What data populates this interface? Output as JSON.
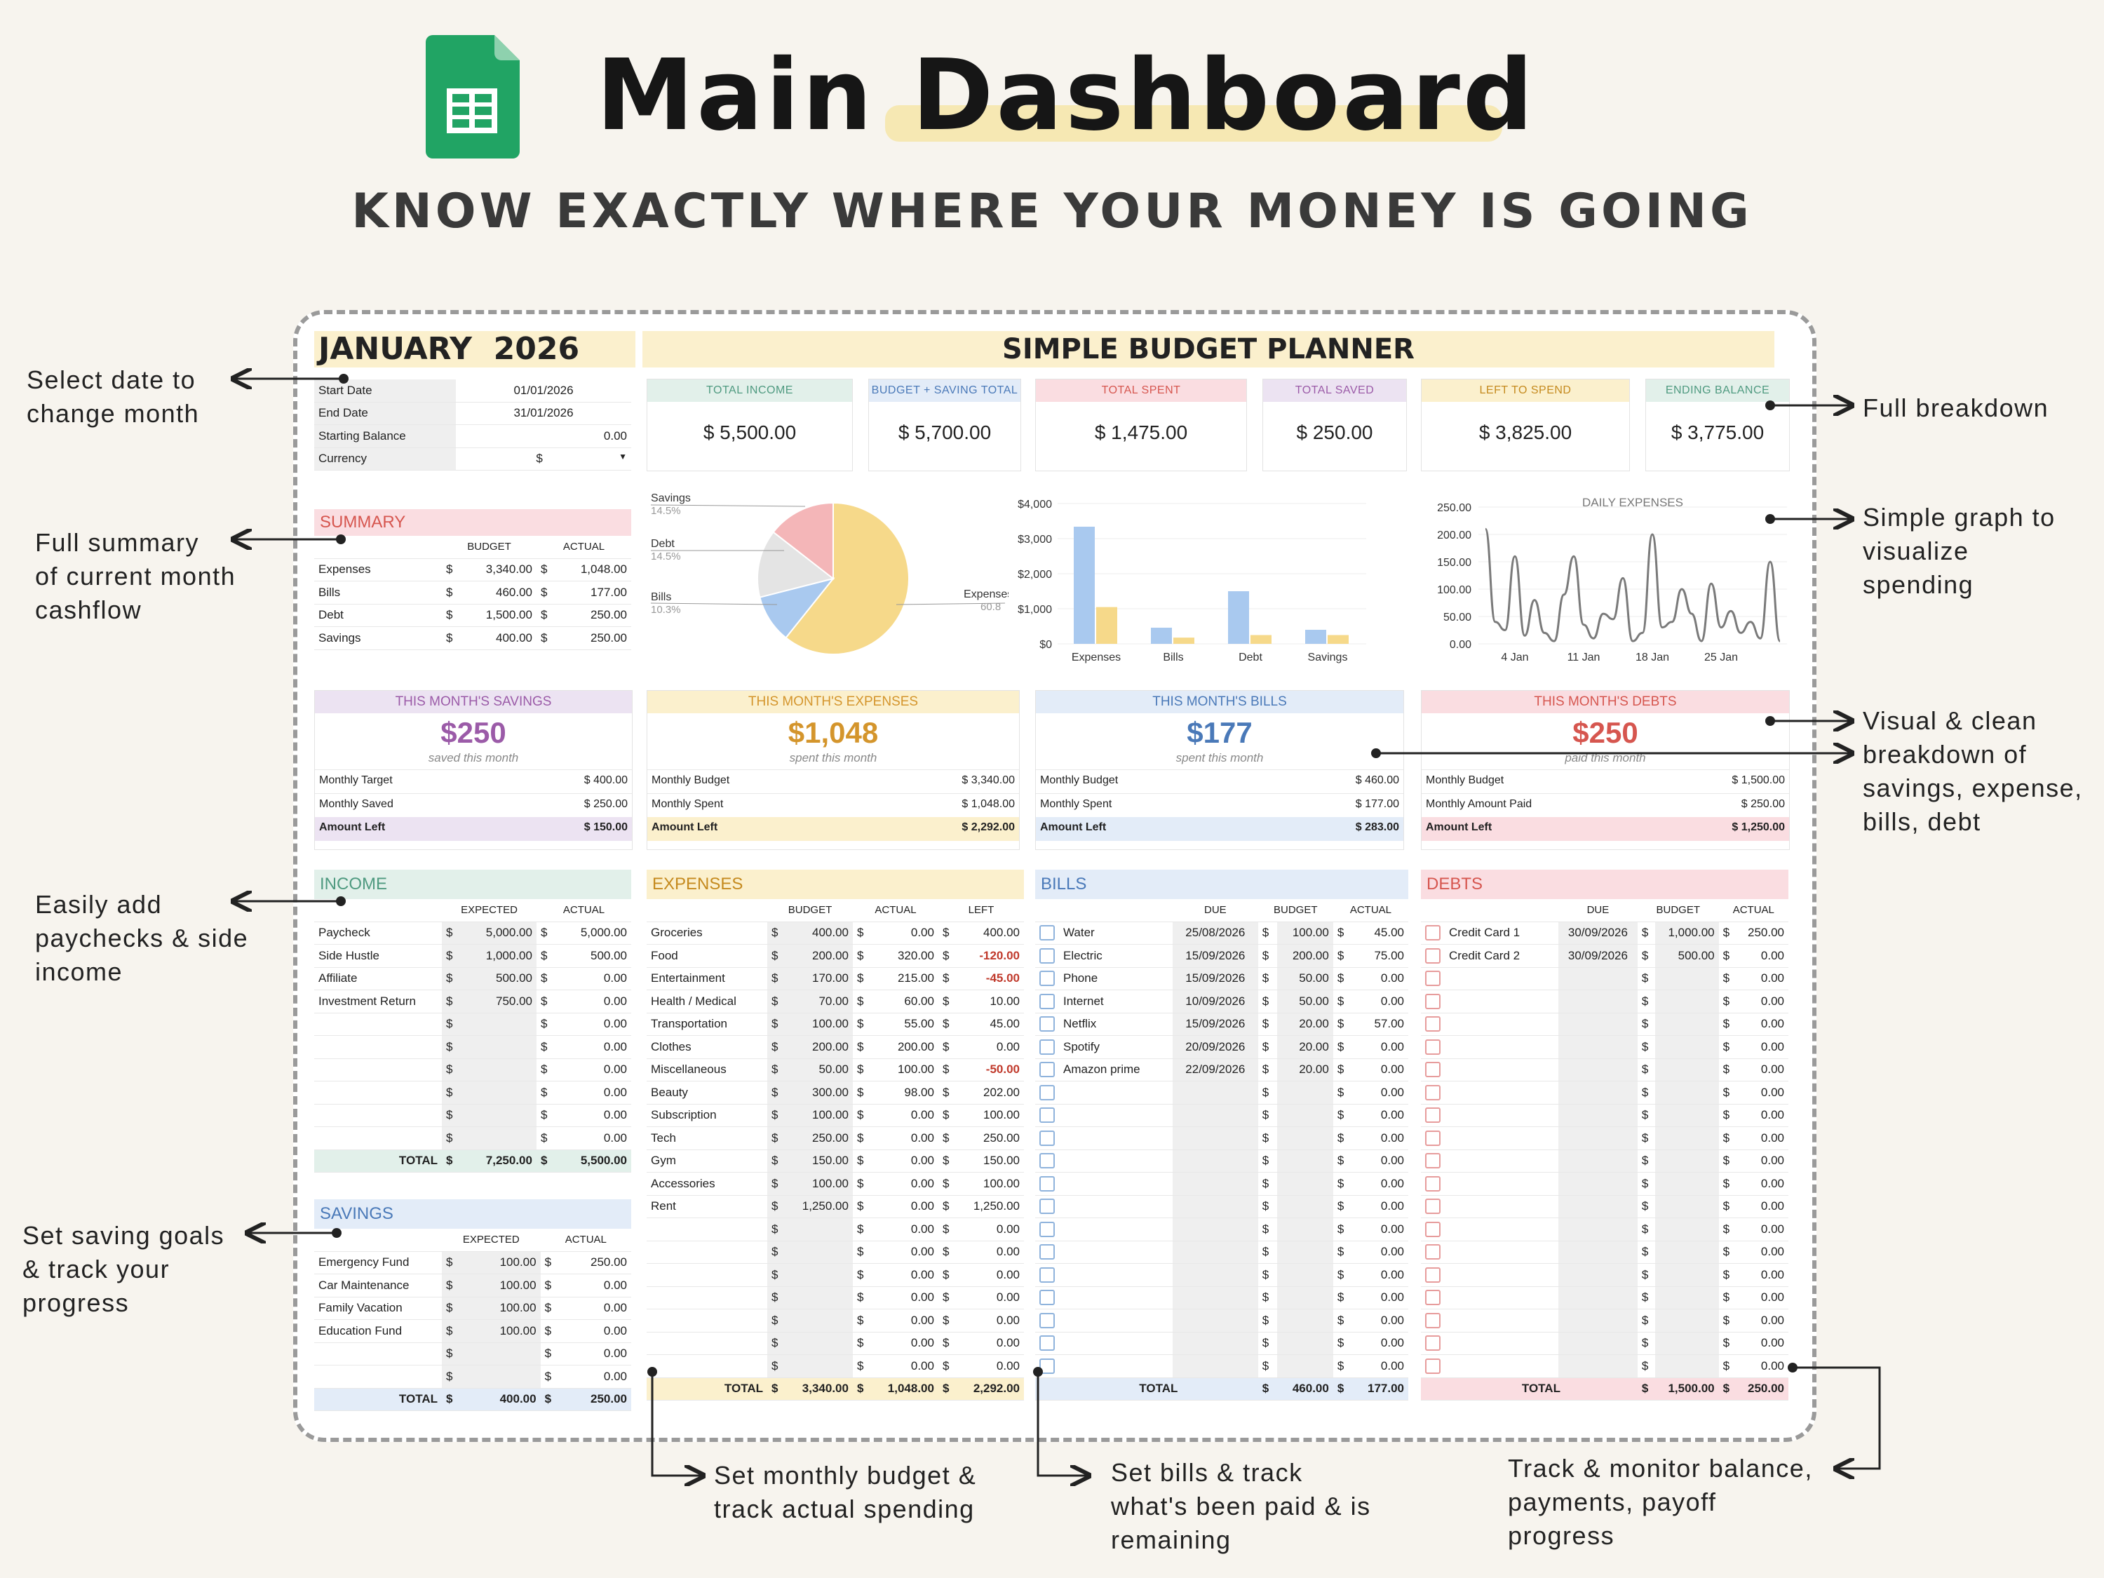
{
  "header": {
    "title": "Main Dashboard",
    "subtitle": "KNOW EXACTLY WHERE YOUR MONEY IS GOING"
  },
  "annotations": {
    "select_date": [
      "Select date to",
      "change month"
    ],
    "full_summary": [
      "Full summary",
      "of current month",
      "cashflow"
    ],
    "add_paychecks": [
      "Easily add",
      "paychecks & side",
      "income"
    ],
    "saving_goals": [
      "Set saving goals",
      "& track your",
      "progress"
    ],
    "full_breakdown": [
      "Full breakdown"
    ],
    "simple_graph": [
      "Simple graph to",
      "visualize",
      "spending"
    ],
    "visual_clean": [
      "Visual & clean",
      "breakdown of",
      "savings, expense,",
      "bills, debt"
    ],
    "monthly_budget": [
      "Set monthly budget &",
      "track actual spending"
    ],
    "set_bills": [
      "Set bills & track",
      "what's been paid & is",
      "remaining"
    ],
    "track_balance": [
      "Track & monitor balance,",
      "payments, payoff",
      "progress"
    ]
  },
  "colors": {
    "mint": "#e2f0ea",
    "blue": "#e3ecf8",
    "pink": "#fadde1",
    "lavender": "#ece3f2",
    "yellow": "#fbf0cd",
    "savings_accent": "#9b5ba8",
    "expenses_accent": "#d4952c",
    "bills_accent": "#4a79b8",
    "debts_accent": "#d6564f"
  },
  "sheet": {
    "month": "JANUARY",
    "year": "2026",
    "planner_title": "SIMPLE BUDGET PLANNER",
    "settings": [
      {
        "label": "Start Date",
        "value": "01/01/2026"
      },
      {
        "label": "End Date",
        "value": "31/01/2026"
      },
      {
        "label": "Starting Balance",
        "value": "0.00"
      },
      {
        "label": "Currency",
        "value": "$"
      }
    ],
    "kpis": [
      {
        "label": "TOTAL INCOME",
        "value": "$  5,500.00"
      },
      {
        "label": "BUDGET + SAVING TOTAL",
        "value": "$  5,700.00"
      },
      {
        "label": "TOTAL SPENT",
        "value": "$  1,475.00"
      },
      {
        "label": "TOTAL SAVED",
        "value": "$  250.00"
      },
      {
        "label": "LEFT TO SPEND",
        "value": "$  3,825.00"
      },
      {
        "label": "ENDING BALANCE",
        "value": "$  3,775.00"
      }
    ],
    "summary": {
      "title": "SUMMARY",
      "col_budget": "BUDGET",
      "col_actual": "ACTUAL",
      "rows": [
        {
          "label": "Expenses",
          "budget": "3,340.00",
          "actual": "1,048.00"
        },
        {
          "label": "Bills",
          "budget": "460.00",
          "actual": "177.00"
        },
        {
          "label": "Debt",
          "budget": "1,500.00",
          "actual": "250.00"
        },
        {
          "label": "Savings",
          "budget": "400.00",
          "actual": "250.00"
        }
      ]
    },
    "cards": [
      {
        "title": "THIS MONTH'S SAVINGS",
        "big": "$250",
        "caption": "saved this month",
        "r1l": "Monthly Target",
        "r1v": "$  400.00",
        "r2l": "Monthly Saved",
        "r2v": "$  250.00",
        "r3l": "Amount Left",
        "r3v": "$  150.00"
      },
      {
        "title": "THIS MONTH'S EXPENSES",
        "big": "$1,048",
        "caption": "spent this month",
        "r1l": "Monthly Budget",
        "r1v": "$  3,340.00",
        "r2l": "Monthly Spent",
        "r2v": "$  1,048.00",
        "r3l": "Amount Left",
        "r3v": "$  2,292.00"
      },
      {
        "title": "THIS MONTH'S BILLS",
        "big": "$177",
        "caption": "spent this month",
        "r1l": "Monthly Budget",
        "r1v": "$  460.00",
        "r2l": "Monthly Spent",
        "r2v": "$  177.00",
        "r3l": "Amount Left",
        "r3v": "$  283.00"
      },
      {
        "title": "THIS MONTH'S DEBTS",
        "big": "$250",
        "caption": "paid this month",
        "r1l": "Monthly Budget",
        "r1v": "$  1,500.00",
        "r2l": "Monthly Amount Paid",
        "r2v": "$  250.00",
        "r3l": "Amount Left",
        "r3v": "$  1,250.00"
      }
    ],
    "income": {
      "title": "INCOME",
      "col_expected": "EXPECTED",
      "col_actual": "ACTUAL",
      "rows": [
        {
          "label": "Paycheck",
          "expected": "5,000.00",
          "actual": "5,000.00"
        },
        {
          "label": "Side Hustle",
          "expected": "1,000.00",
          "actual": "500.00"
        },
        {
          "label": "Affiliate",
          "expected": "500.00",
          "actual": "0.00"
        },
        {
          "label": "Investment Return",
          "expected": "750.00",
          "actual": "0.00"
        },
        {
          "label": "",
          "expected": "",
          "actual": "0.00"
        },
        {
          "label": "",
          "expected": "",
          "actual": "0.00"
        },
        {
          "label": "",
          "expected": "",
          "actual": "0.00"
        },
        {
          "label": "",
          "expected": "",
          "actual": "0.00"
        },
        {
          "label": "",
          "expected": "",
          "actual": "0.00"
        },
        {
          "label": "",
          "expected": "",
          "actual": "0.00"
        }
      ],
      "total_label": "TOTAL",
      "total_expected": "7,250.00",
      "total_actual": "5,500.00"
    },
    "savings": {
      "title": "SAVINGS",
      "col_expected": "EXPECTED",
      "col_actual": "ACTUAL",
      "rows": [
        {
          "label": "Emergency Fund",
          "expected": "100.00",
          "actual": "250.00"
        },
        {
          "label": "Car Maintenance",
          "expected": "100.00",
          "actual": "0.00"
        },
        {
          "label": "Family Vacation",
          "expected": "100.00",
          "actual": "0.00"
        },
        {
          "label": "Education Fund",
          "expected": "100.00",
          "actual": "0.00"
        },
        {
          "label": "",
          "expected": "",
          "actual": "0.00"
        },
        {
          "label": "",
          "expected": "",
          "actual": "0.00"
        }
      ],
      "total_label": "TOTAL",
      "total_expected": "400.00",
      "total_actual": "250.00"
    },
    "expenses": {
      "title": "EXPENSES",
      "col_budget": "BUDGET",
      "col_actual": "ACTUAL",
      "col_left": "LEFT",
      "rows": [
        {
          "label": "Groceries",
          "budget": "400.00",
          "actual": "0.00",
          "left": "400.00",
          "neg": false
        },
        {
          "label": "Food",
          "budget": "200.00",
          "actual": "320.00",
          "left": "-120.00",
          "neg": true
        },
        {
          "label": "Entertainment",
          "budget": "170.00",
          "actual": "215.00",
          "left": "-45.00",
          "neg": true
        },
        {
          "label": "Health / Medical",
          "budget": "70.00",
          "actual": "60.00",
          "left": "10.00",
          "neg": false
        },
        {
          "label": "Transportation",
          "budget": "100.00",
          "actual": "55.00",
          "left": "45.00",
          "neg": false
        },
        {
          "label": "Clothes",
          "budget": "200.00",
          "actual": "200.00",
          "left": "0.00",
          "neg": false
        },
        {
          "label": "Miscellaneous",
          "budget": "50.00",
          "actual": "100.00",
          "left": "-50.00",
          "neg": true
        },
        {
          "label": "Beauty",
          "budget": "300.00",
          "actual": "98.00",
          "left": "202.00",
          "neg": false
        },
        {
          "label": "Subscription",
          "budget": "100.00",
          "actual": "0.00",
          "left": "100.00",
          "neg": false
        },
        {
          "label": "Tech",
          "budget": "250.00",
          "actual": "0.00",
          "left": "250.00",
          "neg": false
        },
        {
          "label": "Gym",
          "budget": "150.00",
          "actual": "0.00",
          "left": "150.00",
          "neg": false
        },
        {
          "label": "Accessories",
          "budget": "100.00",
          "actual": "0.00",
          "left": "100.00",
          "neg": false
        },
        {
          "label": "Rent",
          "budget": "1,250.00",
          "actual": "0.00",
          "left": "1,250.00",
          "neg": false
        },
        {
          "label": "",
          "budget": "",
          "actual": "0.00",
          "left": "0.00",
          "neg": false
        },
        {
          "label": "",
          "budget": "",
          "actual": "0.00",
          "left": "0.00",
          "neg": false
        },
        {
          "label": "",
          "budget": "",
          "actual": "0.00",
          "left": "0.00",
          "neg": false
        },
        {
          "label": "",
          "budget": "",
          "actual": "0.00",
          "left": "0.00",
          "neg": false
        },
        {
          "label": "",
          "budget": "",
          "actual": "0.00",
          "left": "0.00",
          "neg": false
        },
        {
          "label": "",
          "budget": "",
          "actual": "0.00",
          "left": "0.00",
          "neg": false
        },
        {
          "label": "",
          "budget": "",
          "actual": "0.00",
          "left": "0.00",
          "neg": false
        }
      ],
      "total_label": "TOTAL",
      "total_budget": "3,340.00",
      "total_actual": "1,048.00",
      "total_left": "2,292.00"
    },
    "bills": {
      "title": "BILLS",
      "col_due": "DUE",
      "col_budget": "BUDGET",
      "col_actual": "ACTUAL",
      "rows": [
        {
          "label": "Water",
          "due": "25/08/2026",
          "budget": "100.00",
          "actual": "45.00"
        },
        {
          "label": "Electric",
          "due": "15/09/2026",
          "budget": "200.00",
          "actual": "75.00"
        },
        {
          "label": "Phone",
          "due": "15/09/2026",
          "budget": "50.00",
          "actual": "0.00"
        },
        {
          "label": "Internet",
          "due": "10/09/2026",
          "budget": "50.00",
          "actual": "0.00"
        },
        {
          "label": "Netflix",
          "due": "15/09/2026",
          "budget": "20.00",
          "actual": "57.00"
        },
        {
          "label": "Spotify",
          "due": "20/09/2026",
          "budget": "20.00",
          "actual": "0.00"
        },
        {
          "label": "Amazon prime",
          "due": "22/09/2026",
          "budget": "20.00",
          "actual": "0.00"
        },
        {
          "label": "",
          "due": "",
          "budget": "",
          "actual": "0.00"
        },
        {
          "label": "",
          "due": "",
          "budget": "",
          "actual": "0.00"
        },
        {
          "label": "",
          "due": "",
          "budget": "",
          "actual": "0.00"
        },
        {
          "label": "",
          "due": "",
          "budget": "",
          "actual": "0.00"
        },
        {
          "label": "",
          "due": "",
          "budget": "",
          "actual": "0.00"
        },
        {
          "label": "",
          "due": "",
          "budget": "",
          "actual": "0.00"
        },
        {
          "label": "",
          "due": "",
          "budget": "",
          "actual": "0.00"
        },
        {
          "label": "",
          "due": "",
          "budget": "",
          "actual": "0.00"
        },
        {
          "label": "",
          "due": "",
          "budget": "",
          "actual": "0.00"
        },
        {
          "label": "",
          "due": "",
          "budget": "",
          "actual": "0.00"
        },
        {
          "label": "",
          "due": "",
          "budget": "",
          "actual": "0.00"
        },
        {
          "label": "",
          "due": "",
          "budget": "",
          "actual": "0.00"
        },
        {
          "label": "",
          "due": "",
          "budget": "",
          "actual": "0.00"
        }
      ],
      "total_label": "TOTAL",
      "total_budget": "460.00",
      "total_actual": "177.00"
    },
    "debts": {
      "title": "DEBTS",
      "col_due": "DUE",
      "col_budget": "BUDGET",
      "col_actual": "ACTUAL",
      "rows": [
        {
          "label": "Credit Card 1",
          "due": "30/09/2026",
          "budget": "1,000.00",
          "actual": "250.00"
        },
        {
          "label": "Credit Card 2",
          "due": "30/09/2026",
          "budget": "500.00",
          "actual": "0.00"
        },
        {
          "label": "",
          "due": "",
          "budget": "",
          "actual": "0.00"
        },
        {
          "label": "",
          "due": "",
          "budget": "",
          "actual": "0.00"
        },
        {
          "label": "",
          "due": "",
          "budget": "",
          "actual": "0.00"
        },
        {
          "label": "",
          "due": "",
          "budget": "",
          "actual": "0.00"
        },
        {
          "label": "",
          "due": "",
          "budget": "",
          "actual": "0.00"
        },
        {
          "label": "",
          "due": "",
          "budget": "",
          "actual": "0.00"
        },
        {
          "label": "",
          "due": "",
          "budget": "",
          "actual": "0.00"
        },
        {
          "label": "",
          "due": "",
          "budget": "",
          "actual": "0.00"
        },
        {
          "label": "",
          "due": "",
          "budget": "",
          "actual": "0.00"
        },
        {
          "label": "",
          "due": "",
          "budget": "",
          "actual": "0.00"
        },
        {
          "label": "",
          "due": "",
          "budget": "",
          "actual": "0.00"
        },
        {
          "label": "",
          "due": "",
          "budget": "",
          "actual": "0.00"
        },
        {
          "label": "",
          "due": "",
          "budget": "",
          "actual": "0.00"
        },
        {
          "label": "",
          "due": "",
          "budget": "",
          "actual": "0.00"
        },
        {
          "label": "",
          "due": "",
          "budget": "",
          "actual": "0.00"
        },
        {
          "label": "",
          "due": "",
          "budget": "",
          "actual": "0.00"
        },
        {
          "label": "",
          "due": "",
          "budget": "",
          "actual": "0.00"
        },
        {
          "label": "",
          "due": "",
          "budget": "",
          "actual": "0.00"
        }
      ],
      "total_label": "TOTAL",
      "total_budget": "1,500.00",
      "total_actual": "250.00"
    }
  },
  "chart_data": [
    {
      "type": "pie",
      "labels": [
        "Savings",
        "Debt",
        "Bills",
        "Expenses"
      ],
      "values": [
        14.5,
        14.5,
        10.3,
        60.8
      ],
      "display": [
        "14.5%",
        "14.5%",
        "10.3%",
        "60.8"
      ],
      "colors": [
        "#f4b6b8",
        "#e4e4e4",
        "#a9c9ef",
        "#f6d98a"
      ]
    },
    {
      "type": "bar",
      "categories": [
        "Expenses",
        "Bills",
        "Debt",
        "Savings"
      ],
      "series": [
        {
          "values": [
            3340,
            460,
            1500,
            400
          ],
          "color": "#a9c9ef"
        },
        {
          "values": [
            1048,
            177,
            250,
            250
          ],
          "color": "#f6d98a"
        }
      ],
      "yticks": [
        "$0",
        "$1,000",
        "$2,000",
        "$3,000",
        "$4,000"
      ],
      "ylim": [
        0,
        4000
      ]
    },
    {
      "type": "line",
      "title": "DAILY EXPENSES",
      "yticks": [
        "0.00",
        "50.00",
        "100.00",
        "150.00",
        "200.00",
        "250.00"
      ],
      "xticks": [
        "4 Jan",
        "11 Jan",
        "18 Jan",
        "25 Jan"
      ],
      "ylim": [
        0,
        250
      ],
      "x": [
        1,
        2,
        3,
        4,
        5,
        6,
        7,
        8,
        9,
        10,
        11,
        12,
        13,
        14,
        15,
        16,
        17,
        18,
        19,
        20,
        21,
        22,
        23,
        24,
        25,
        26,
        27,
        28,
        29,
        30,
        31
      ],
      "y": [
        210,
        40,
        25,
        160,
        15,
        80,
        20,
        5,
        90,
        160,
        35,
        10,
        55,
        45,
        120,
        5,
        20,
        200,
        30,
        40,
        100,
        55,
        5,
        110,
        30,
        60,
        20,
        40,
        10,
        150,
        5
      ]
    }
  ]
}
